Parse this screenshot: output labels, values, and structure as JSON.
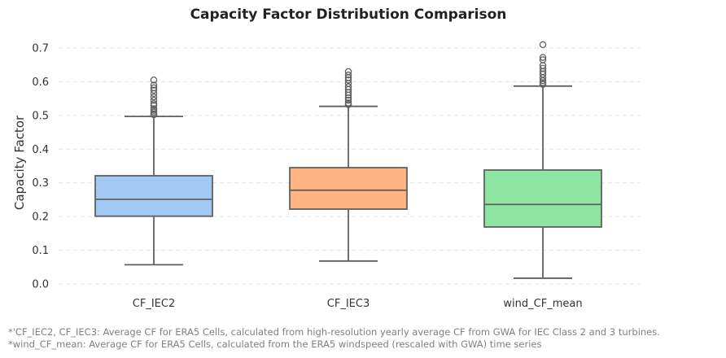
{
  "chart_data": {
    "type": "box",
    "title": "Capacity Factor Distribution Comparison",
    "xlabel": "",
    "ylabel": "Capacity Factor",
    "ylim": [
      -0.03,
      0.76
    ],
    "yticks": [
      0.0,
      0.1,
      0.2,
      0.3,
      0.4,
      0.5,
      0.6,
      0.7
    ],
    "ytick_labels": [
      "0.0",
      "0.1",
      "0.2",
      "0.3",
      "0.4",
      "0.5",
      "0.6",
      "0.7"
    ],
    "grid": "horizontal-dashed",
    "categories": [
      "CF_IEC2",
      "CF_IEC3",
      "wind_CF_mean"
    ],
    "colors": [
      "#a1c9f4",
      "#ffb482",
      "#8de5a1"
    ],
    "edge_color": "#606060",
    "series": [
      {
        "name": "CF_IEC2",
        "whisker_low": 0.057,
        "q1": 0.201,
        "median": 0.251,
        "q3": 0.321,
        "whisker_high": 0.497,
        "outliers": [
          0.502,
          0.505,
          0.51,
          0.515,
          0.52,
          0.53,
          0.535,
          0.545,
          0.555,
          0.565,
          0.575,
          0.582,
          0.59,
          0.605
        ]
      },
      {
        "name": "CF_IEC3",
        "whisker_low": 0.068,
        "q1": 0.222,
        "median": 0.278,
        "q3": 0.345,
        "whisker_high": 0.527,
        "outliers": [
          0.532,
          0.537,
          0.545,
          0.552,
          0.56,
          0.568,
          0.577,
          0.585,
          0.595,
          0.605,
          0.612,
          0.62,
          0.63
        ]
      },
      {
        "name": "wind_CF_mean",
        "whisker_low": 0.017,
        "q1": 0.169,
        "median": 0.236,
        "q3": 0.338,
        "whisker_high": 0.587,
        "outliers": [
          0.592,
          0.597,
          0.603,
          0.612,
          0.622,
          0.63,
          0.64,
          0.648,
          0.665,
          0.672,
          0.71
        ]
      }
    ]
  },
  "footnotes": {
    "line1": "*'CF_IEC2, CF_IEC3: Average CF for ERA5 Cells, calculated from high-resolution yearly average CF from GWA for IEC Class 2 and 3 turbines.",
    "line2": "*wind_CF_mean: Average CF for ERA5 Cells, calculated from the ERA5 windspeed (rescaled with GWA) time series"
  }
}
